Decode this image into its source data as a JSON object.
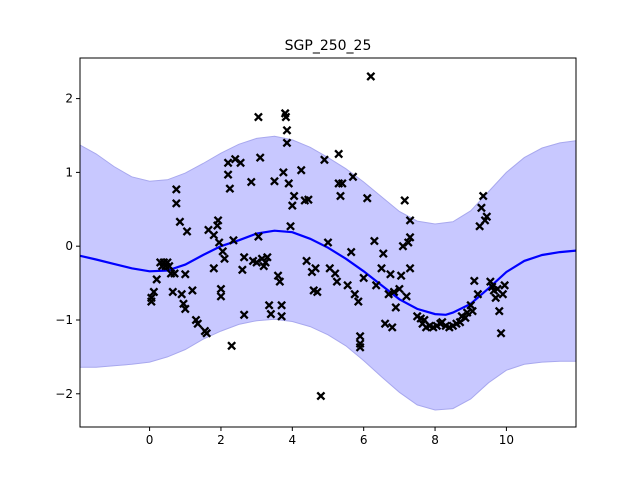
{
  "chart_data": {
    "type": "scatter",
    "title": "SGP_250_25",
    "xlabel": "",
    "ylabel": "",
    "xlim": [
      -1.95,
      11.95
    ],
    "ylim": [
      -2.45,
      2.55
    ],
    "xticks": [
      0,
      2,
      4,
      6,
      8,
      10
    ],
    "yticks": [
      -2,
      -1,
      0,
      1,
      2
    ],
    "grid": false,
    "colors": {
      "mean": "#0000ff",
      "band": "#c8c8ff",
      "band_edge": "#a8a8ee",
      "points": "#000000"
    },
    "mean": {
      "x": [
        -1.95,
        -1.5,
        -1.0,
        -0.5,
        0.0,
        0.5,
        1.0,
        1.5,
        2.0,
        2.5,
        3.0,
        3.5,
        4.0,
        4.5,
        5.0,
        5.5,
        6.0,
        6.5,
        7.0,
        7.5,
        8.0,
        8.3,
        8.5,
        9.0,
        9.5,
        10.0,
        10.5,
        11.0,
        11.5,
        11.95
      ],
      "y": [
        -0.13,
        -0.18,
        -0.24,
        -0.3,
        -0.34,
        -0.33,
        -0.25,
        -0.12,
        0.0,
        0.08,
        0.17,
        0.21,
        0.19,
        0.1,
        -0.02,
        -0.17,
        -0.34,
        -0.53,
        -0.72,
        -0.85,
        -0.92,
        -0.93,
        -0.9,
        -0.78,
        -0.57,
        -0.35,
        -0.2,
        -0.12,
        -0.08,
        -0.06
      ]
    },
    "band_upper": {
      "x": [
        -1.95,
        -1.5,
        -1.0,
        -0.5,
        0.0,
        0.5,
        1.0,
        1.5,
        2.0,
        2.5,
        3.0,
        3.5,
        4.0,
        4.5,
        5.0,
        5.5,
        6.0,
        6.5,
        7.0,
        7.5,
        8.0,
        8.5,
        9.0,
        9.5,
        10.0,
        10.5,
        11.0,
        11.5,
        11.95
      ],
      "y": [
        1.37,
        1.25,
        1.08,
        0.94,
        0.88,
        0.9,
        0.99,
        1.12,
        1.26,
        1.38,
        1.46,
        1.49,
        1.44,
        1.34,
        1.2,
        1.05,
        0.87,
        0.67,
        0.47,
        0.34,
        0.3,
        0.33,
        0.48,
        0.74,
        1.0,
        1.2,
        1.33,
        1.4,
        1.43
      ]
    },
    "band_lower": {
      "x": [
        -1.95,
        -1.5,
        -1.0,
        -0.5,
        0.0,
        0.5,
        1.0,
        1.5,
        2.0,
        2.5,
        3.0,
        3.5,
        4.0,
        4.5,
        5.0,
        5.5,
        6.0,
        6.5,
        7.0,
        7.5,
        8.0,
        8.5,
        9.0,
        9.5,
        10.0,
        10.5,
        11.0,
        11.5,
        11.95
      ],
      "y": [
        -1.64,
        -1.64,
        -1.62,
        -1.6,
        -1.57,
        -1.5,
        -1.4,
        -1.26,
        -1.15,
        -1.06,
        -1.01,
        -0.99,
        -1.02,
        -1.09,
        -1.2,
        -1.35,
        -1.55,
        -1.77,
        -1.98,
        -2.15,
        -2.22,
        -2.2,
        -2.07,
        -1.85,
        -1.68,
        -1.6,
        -1.57,
        -1.56,
        -1.56
      ]
    },
    "points": [
      {
        "x": 0.05,
        "y": -0.7
      },
      {
        "x": 0.05,
        "y": -0.75
      },
      {
        "x": 0.12,
        "y": -0.62
      },
      {
        "x": 0.2,
        "y": -0.45
      },
      {
        "x": 0.3,
        "y": -0.22
      },
      {
        "x": 0.35,
        "y": -0.27
      },
      {
        "x": 0.4,
        "y": -0.22
      },
      {
        "x": 0.45,
        "y": -0.27
      },
      {
        "x": 0.5,
        "y": -0.22
      },
      {
        "x": 0.55,
        "y": -0.27
      },
      {
        "x": 0.6,
        "y": -0.37
      },
      {
        "x": 0.65,
        "y": -0.62
      },
      {
        "x": 0.7,
        "y": -0.37
      },
      {
        "x": 0.75,
        "y": 0.77
      },
      {
        "x": 0.75,
        "y": 0.58
      },
      {
        "x": 0.85,
        "y": 0.33
      },
      {
        "x": 0.9,
        "y": -0.65
      },
      {
        "x": 0.95,
        "y": -0.78
      },
      {
        "x": 1.0,
        "y": -0.85
      },
      {
        "x": 1.0,
        "y": -0.38
      },
      {
        "x": 1.05,
        "y": 0.2
      },
      {
        "x": 1.2,
        "y": -0.6
      },
      {
        "x": 1.3,
        "y": -1.0
      },
      {
        "x": 1.35,
        "y": -1.05
      },
      {
        "x": 1.55,
        "y": -1.15
      },
      {
        "x": 1.6,
        "y": -1.18
      },
      {
        "x": 1.65,
        "y": 0.22
      },
      {
        "x": 1.8,
        "y": -0.3
      },
      {
        "x": 1.8,
        "y": 0.15
      },
      {
        "x": 1.9,
        "y": 0.28
      },
      {
        "x": 1.92,
        "y": 0.35
      },
      {
        "x": 1.95,
        "y": 0.05
      },
      {
        "x": 2.0,
        "y": -0.58
      },
      {
        "x": 2.0,
        "y": -0.68
      },
      {
        "x": 2.05,
        "y": -0.07
      },
      {
        "x": 2.1,
        "y": -0.17
      },
      {
        "x": 2.2,
        "y": 0.97
      },
      {
        "x": 2.2,
        "y": 1.13
      },
      {
        "x": 2.25,
        "y": 0.78
      },
      {
        "x": 2.3,
        "y": -1.35
      },
      {
        "x": 2.35,
        "y": 0.08
      },
      {
        "x": 2.4,
        "y": 1.18
      },
      {
        "x": 2.55,
        "y": 1.13
      },
      {
        "x": 2.6,
        "y": -0.32
      },
      {
        "x": 2.65,
        "y": -0.93
      },
      {
        "x": 2.65,
        "y": -0.15
      },
      {
        "x": 2.85,
        "y": 0.87
      },
      {
        "x": 2.9,
        "y": -0.2
      },
      {
        "x": 3.0,
        "y": -0.22
      },
      {
        "x": 3.05,
        "y": 1.75
      },
      {
        "x": 3.05,
        "y": 0.13
      },
      {
        "x": 3.1,
        "y": 1.2
      },
      {
        "x": 3.15,
        "y": -0.17
      },
      {
        "x": 3.2,
        "y": -0.27
      },
      {
        "x": 3.25,
        "y": -0.22
      },
      {
        "x": 3.3,
        "y": -0.15
      },
      {
        "x": 3.35,
        "y": -0.8
      },
      {
        "x": 3.4,
        "y": -0.92
      },
      {
        "x": 3.5,
        "y": 0.88
      },
      {
        "x": 3.6,
        "y": -0.4
      },
      {
        "x": 3.65,
        "y": -0.48
      },
      {
        "x": 3.7,
        "y": -0.8
      },
      {
        "x": 3.7,
        "y": -0.95
      },
      {
        "x": 3.75,
        "y": 1.0
      },
      {
        "x": 3.8,
        "y": 1.8
      },
      {
        "x": 3.82,
        "y": 1.75
      },
      {
        "x": 3.85,
        "y": 1.57
      },
      {
        "x": 3.85,
        "y": 1.4
      },
      {
        "x": 3.9,
        "y": 0.85
      },
      {
        "x": 3.95,
        "y": 0.27
      },
      {
        "x": 4.0,
        "y": 0.55
      },
      {
        "x": 4.05,
        "y": 0.68
      },
      {
        "x": 4.25,
        "y": 1.03
      },
      {
        "x": 4.35,
        "y": 0.62
      },
      {
        "x": 4.4,
        "y": -0.2
      },
      {
        "x": 4.45,
        "y": 0.63
      },
      {
        "x": 4.55,
        "y": -0.35
      },
      {
        "x": 4.6,
        "y": -0.6
      },
      {
        "x": 4.65,
        "y": -0.3
      },
      {
        "x": 4.7,
        "y": -0.62
      },
      {
        "x": 4.8,
        "y": -2.03
      },
      {
        "x": 4.9,
        "y": 1.17
      },
      {
        "x": 5.0,
        "y": 0.05
      },
      {
        "x": 5.05,
        "y": -0.3
      },
      {
        "x": 5.2,
        "y": -0.37
      },
      {
        "x": 5.25,
        "y": -0.48
      },
      {
        "x": 5.3,
        "y": 0.85
      },
      {
        "x": 5.3,
        "y": 1.25
      },
      {
        "x": 5.35,
        "y": 0.68
      },
      {
        "x": 5.4,
        "y": 0.85
      },
      {
        "x": 5.55,
        "y": -0.53
      },
      {
        "x": 5.65,
        "y": -0.08
      },
      {
        "x": 5.7,
        "y": 0.94
      },
      {
        "x": 5.75,
        "y": -0.65
      },
      {
        "x": 5.85,
        "y": -0.75
      },
      {
        "x": 5.9,
        "y": -1.22
      },
      {
        "x": 5.9,
        "y": -1.32
      },
      {
        "x": 5.9,
        "y": -1.37
      },
      {
        "x": 6.0,
        "y": -0.43
      },
      {
        "x": 6.1,
        "y": 0.65
      },
      {
        "x": 6.2,
        "y": 2.3
      },
      {
        "x": 6.3,
        "y": 0.07
      },
      {
        "x": 6.35,
        "y": -0.53
      },
      {
        "x": 6.5,
        "y": -0.3
      },
      {
        "x": 6.55,
        "y": -0.1
      },
      {
        "x": 6.6,
        "y": -1.05
      },
      {
        "x": 6.7,
        "y": -0.65
      },
      {
        "x": 6.75,
        "y": -0.38
      },
      {
        "x": 6.8,
        "y": -1.1
      },
      {
        "x": 6.85,
        "y": -0.62
      },
      {
        "x": 6.9,
        "y": -0.83
      },
      {
        "x": 7.0,
        "y": -0.58
      },
      {
        "x": 7.05,
        "y": -0.4
      },
      {
        "x": 7.1,
        "y": 0.0
      },
      {
        "x": 7.15,
        "y": 0.62
      },
      {
        "x": 7.2,
        "y": -0.68
      },
      {
        "x": 7.25,
        "y": 0.05
      },
      {
        "x": 7.3,
        "y": 0.35
      },
      {
        "x": 7.3,
        "y": 0.12
      },
      {
        "x": 7.3,
        "y": -0.3
      },
      {
        "x": 7.5,
        "y": -0.95
      },
      {
        "x": 7.6,
        "y": -0.98
      },
      {
        "x": 7.65,
        "y": -1.05
      },
      {
        "x": 7.7,
        "y": -1.0
      },
      {
        "x": 7.75,
        "y": -1.1
      },
      {
        "x": 7.85,
        "y": -1.08
      },
      {
        "x": 7.95,
        "y": -1.1
      },
      {
        "x": 8.05,
        "y": -1.08
      },
      {
        "x": 8.15,
        "y": -1.05
      },
      {
        "x": 8.2,
        "y": -1.03
      },
      {
        "x": 8.3,
        "y": -1.08
      },
      {
        "x": 8.4,
        "y": -1.1
      },
      {
        "x": 8.5,
        "y": -1.08
      },
      {
        "x": 8.6,
        "y": -1.05
      },
      {
        "x": 8.7,
        "y": -1.03
      },
      {
        "x": 8.75,
        "y": -0.95
      },
      {
        "x": 8.85,
        "y": -0.97
      },
      {
        "x": 8.9,
        "y": -0.9
      },
      {
        "x": 9.0,
        "y": -0.8
      },
      {
        "x": 9.05,
        "y": -0.88
      },
      {
        "x": 9.1,
        "y": -0.47
      },
      {
        "x": 9.2,
        "y": -0.65
      },
      {
        "x": 9.25,
        "y": 0.27
      },
      {
        "x": 9.3,
        "y": 0.52
      },
      {
        "x": 9.35,
        "y": 0.68
      },
      {
        "x": 9.4,
        "y": 0.35
      },
      {
        "x": 9.45,
        "y": 0.4
      },
      {
        "x": 9.55,
        "y": -0.48
      },
      {
        "x": 9.6,
        "y": -0.55
      },
      {
        "x": 9.65,
        "y": -0.6
      },
      {
        "x": 9.7,
        "y": -0.7
      },
      {
        "x": 9.75,
        "y": -0.58
      },
      {
        "x": 9.8,
        "y": -0.88
      },
      {
        "x": 9.85,
        "y": -1.18
      },
      {
        "x": 9.9,
        "y": -0.65
      },
      {
        "x": 9.95,
        "y": -0.53
      }
    ]
  }
}
